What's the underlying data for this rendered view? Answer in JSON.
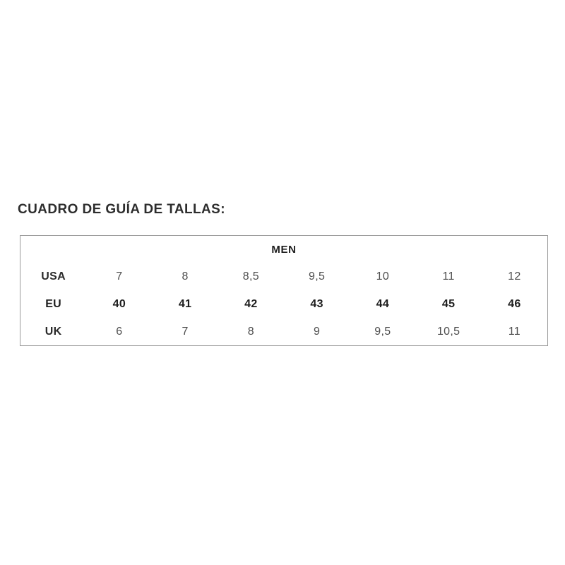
{
  "page": {
    "title": "CUADRO DE GUÍA DE TALLAS:"
  },
  "chart_data": {
    "type": "table",
    "title": "MEN",
    "row_headers": [
      "USA",
      "EU",
      "UK"
    ],
    "rows": [
      {
        "label": "USA",
        "values": [
          "7",
          "8",
          "8,5",
          "9,5",
          "10",
          "11",
          "12"
        ],
        "emphasis": false
      },
      {
        "label": "EU",
        "values": [
          "40",
          "41",
          "42",
          "43",
          "44",
          "45",
          "46"
        ],
        "emphasis": true
      },
      {
        "label": "UK",
        "values": [
          "6",
          "7",
          "8",
          "9",
          "9,5",
          "10,5",
          "11"
        ],
        "emphasis": false
      }
    ],
    "layout": {
      "grid": false,
      "header_position": "top-center"
    }
  },
  "colors": {
    "background": "#ffffff",
    "border": "#999999",
    "title_text": "#2d2d2d",
    "label_text": "#2b2b2b",
    "value_text": "#4d4d4d",
    "emphasis_text": "#1e1e1e"
  }
}
